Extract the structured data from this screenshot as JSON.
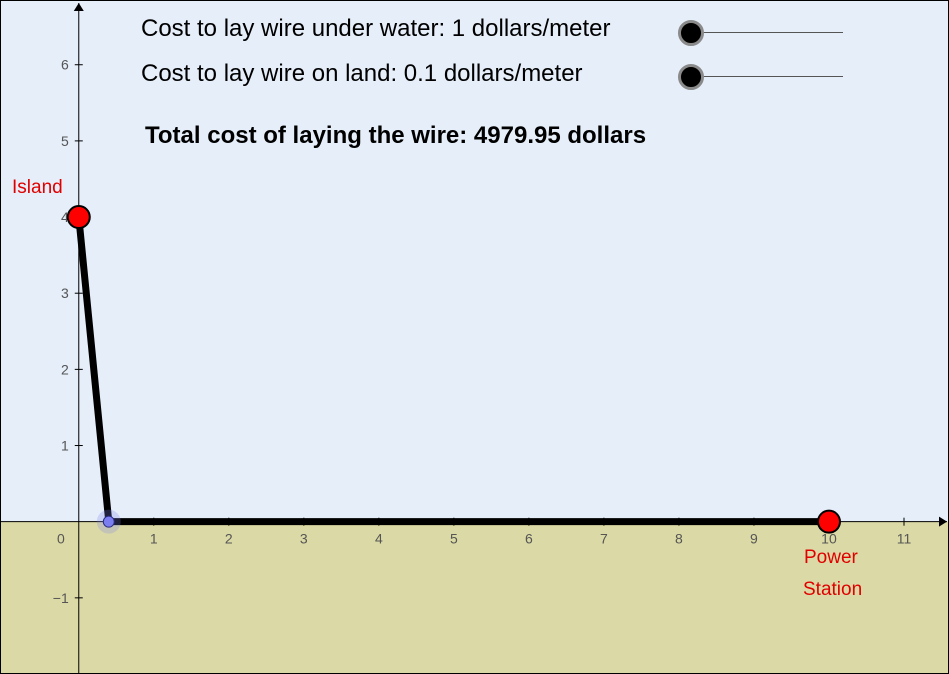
{
  "sliders": {
    "water": {
      "label": "Cost to lay wire under water: 1 dollars/meter",
      "value": 1
    },
    "land": {
      "label": "Cost to lay wire on land: 0.1 dollars/meter",
      "value": 0.1
    }
  },
  "total": {
    "label": "Total cost of laying the wire: 4979.95 dollars"
  },
  "points": {
    "island": {
      "label": "Island",
      "x": 0,
      "y": 4
    },
    "station": {
      "label_line1": "Power",
      "label_line2": "Station",
      "x": 10,
      "y": 0
    },
    "junction": {
      "x": 0.4,
      "y": 0
    }
  },
  "axes": {
    "x_ticks": [
      "1",
      "2",
      "3",
      "4",
      "5",
      "6",
      "7",
      "8",
      "9",
      "10",
      "11"
    ],
    "y_ticks": [
      "6",
      "5",
      "4",
      "3",
      "2",
      "1",
      "−1"
    ],
    "origin_label": "0",
    "x_range": [
      -1.05,
      11.6
    ],
    "y_range": [
      -2,
      6.85
    ]
  },
  "colors": {
    "water": "#e5eef9",
    "land": "#dbdaa6",
    "wire": "#000000",
    "point": "#ff0000",
    "junction": "#7b7ef0",
    "label": "#e00000"
  }
}
